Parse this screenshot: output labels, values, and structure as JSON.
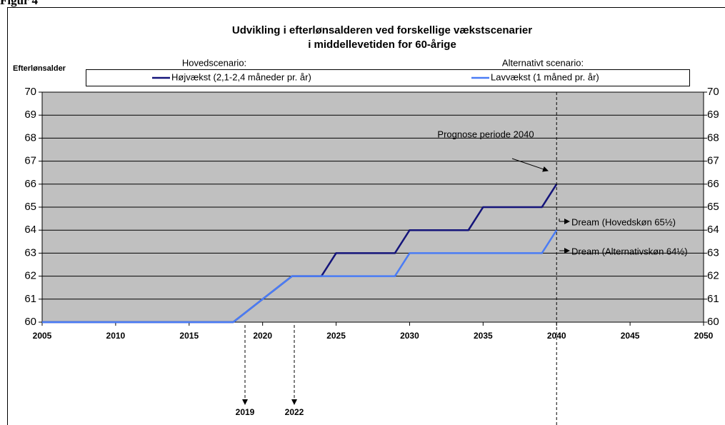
{
  "figure_label": "Figur 4",
  "chart_data": {
    "type": "line",
    "title": [
      "Udvikling i efterlønsalderen ved forskellige vækstscenarier",
      "i middellevetiden for 60-årige"
    ],
    "y_label": "Efterlønsalder",
    "legend_headers": [
      "Hovedscenario:",
      "Alternativt scenario:"
    ],
    "series": [
      {
        "name": "Højvækst (2,1-2,4 måneder pr. år)",
        "color": "#14147a",
        "x": [
          2005,
          2018,
          2022,
          2024,
          2025,
          2029,
          2030,
          2034,
          2035,
          2039,
          2040
        ],
        "values": [
          60,
          60,
          62,
          62,
          63,
          63,
          64,
          64,
          65,
          65,
          66
        ]
      },
      {
        "name": "Lavvækst  (1 måned pr. år)",
        "color": "#4a7cf5",
        "x": [
          2005,
          2018,
          2022,
          2029,
          2030,
          2039,
          2040
        ],
        "values": [
          60,
          60,
          62,
          62,
          63,
          63,
          64
        ]
      }
    ],
    "xlim": [
      2005,
      2050
    ],
    "xticks": [
      2005,
      2010,
      2015,
      2020,
      2025,
      2030,
      2035,
      2040,
      2045,
      2050
    ],
    "ylim": [
      60,
      70
    ],
    "yticks": [
      60,
      61,
      62,
      63,
      64,
      65,
      66,
      67,
      68,
      69,
      70
    ],
    "y2lim": [
      60,
      70
    ],
    "y2ticks": [
      60,
      61,
      62,
      63,
      64,
      65,
      66,
      67,
      68,
      69,
      70
    ],
    "grid": true,
    "plot_background": "#c0c0c0",
    "annotations": [
      "Prognose periode 2040",
      "Dream (Hovedskøn 65½)",
      "Dream (Alternativskøn 64½)",
      "2019",
      "2022"
    ]
  }
}
